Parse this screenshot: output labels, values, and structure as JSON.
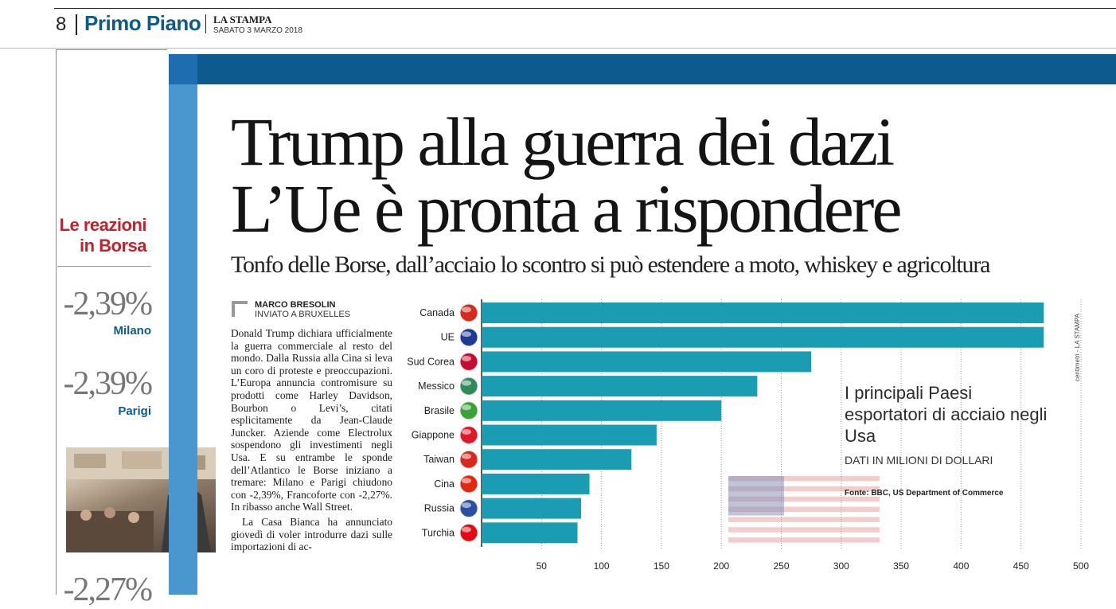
{
  "header": {
    "page_number": "8",
    "section": "Primo Piano",
    "newspaper": "LA STAMPA",
    "date": "SABATO 3 MARZO 2018"
  },
  "sidebar": {
    "title_line1": "Le reazioni",
    "title_line2": "in Borsa",
    "markets": [
      {
        "value": "-2,39%",
        "city": "Milano"
      },
      {
        "value": "-2,39%",
        "city": "Parigi"
      },
      {
        "value": "-2,27%",
        "city": ""
      }
    ]
  },
  "headline": {
    "line1": "Trump alla guerra dei dazi",
    "line2": "L’Ue è pronta a rispondere"
  },
  "subheadline": "Tonfo delle Borse, dall’acciaio lo scontro si può estendere a moto, whiskey e agricoltura",
  "byline": {
    "author": "MARCO BRESOLIN",
    "role": "INVIATO A BRUXELLES"
  },
  "article": {
    "paragraph1": "Donald Trump dichiara ufficialmente la guerra commerciale al resto del mondo. Dalla Russia alla Cina si leva un coro di proteste e preoccupazioni. L’Europa annuncia contromisure su prodotti come Harley Davidson, Bourbon o Levi’s, citati esplicitamente da Jean-Claude Juncker. Aziende come Electrolux sospendono gli investimenti negli Usa. E su entrambe le sponde dell’Atlantico le Borse iniziano a tremare: Milano e Parigi chiudono con -2,39%, Francoforte con -2,27%. In ribasso anche Wall Street.",
    "paragraph2": "La Casa Bianca ha annunciato giovedì di voler introdurre dazi sulle importazioni di ac-"
  },
  "chart_data": {
    "type": "bar",
    "orientation": "horizontal",
    "title": "I principali Paesi esportatori di acciaio negli Usa",
    "subtitle": "DATI IN MILIONI DI DOLLARI",
    "source_label": "Fonte:",
    "source": "BBC, US Department of Commerce",
    "credit": "centimetri - LA STAMPA",
    "categories": [
      "Canada",
      "UE",
      "Sud Corea",
      "Messico",
      "Brasile",
      "Giappone",
      "Taiwan",
      "Cina",
      "Russia",
      "Turchia"
    ],
    "values": [
      469,
      469,
      275,
      230,
      200,
      146,
      125,
      90,
      83,
      80
    ],
    "xlim": [
      0,
      500
    ],
    "xticks": [
      50,
      100,
      150,
      200,
      250,
      300,
      350,
      400,
      450,
      500
    ],
    "bar_color": "#1a9cb3",
    "grid": true,
    "flag_colors": [
      "#d52b1e",
      "#1f3a93",
      "#c60c30",
      "#2e8b57",
      "#3aa335",
      "#e0162b",
      "#d52b1e",
      "#de2910",
      "#2a4fa0",
      "#e30a17"
    ]
  }
}
